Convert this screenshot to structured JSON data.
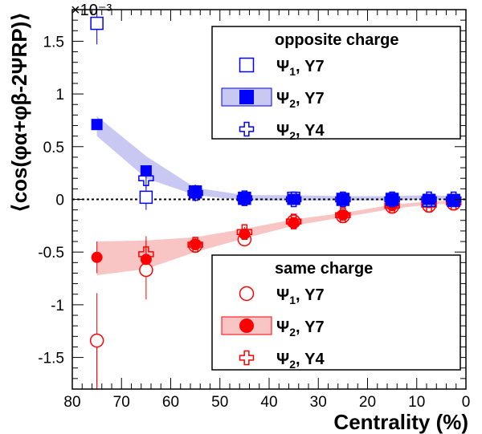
{
  "chart_data": {
    "type": "scatter",
    "title": "",
    "xlabel": "Centrality (%)",
    "ylabel": "⟨cos(φα+φβ-2ΨRP)⟩",
    "y_exponent": "×10⁻³",
    "xlim": [
      80,
      0
    ],
    "ylim": [
      -1.8,
      1.8
    ],
    "x_ticks": [
      80,
      70,
      60,
      50,
      40,
      30,
      20,
      10,
      0
    ],
    "y_ticks": [
      1.5,
      1,
      0.5,
      0,
      -0.5,
      -1,
      -1.5
    ],
    "x_tick_labels": [
      "80",
      "70",
      "60",
      "50",
      "40",
      "30",
      "20",
      "10",
      "0"
    ],
    "y_tick_labels": [
      "1.5",
      "1",
      "0.5",
      "0",
      "-0.5",
      "-1",
      "-1.5"
    ],
    "zero_line": true,
    "series": [
      {
        "name": "Ψ1, Y7",
        "group": "opposite charge",
        "marker": "open-square",
        "color": "#0000ff",
        "x": [
          75,
          65,
          55,
          45,
          35,
          25,
          15,
          7.5,
          2.5
        ],
        "y": [
          1.67,
          0.02,
          0.07,
          0.01,
          0.01,
          0.0,
          0.0,
          -0.01,
          -0.01
        ],
        "err": [
          0.2,
          0.12,
          0.06,
          0.04,
          0.03,
          0.03,
          0.02,
          0.02,
          0.02
        ]
      },
      {
        "name": "Ψ2, Y7",
        "group": "opposite charge",
        "marker": "filled-square",
        "color": "#0000ff",
        "x": [
          75,
          65,
          55,
          45,
          35,
          25,
          15,
          7.5,
          2.5
        ],
        "y": [
          0.71,
          0.27,
          0.07,
          0.01,
          0.0,
          0.0,
          0.0,
          0.0,
          -0.01
        ],
        "band_low": [
          0.6,
          0.2,
          0.04,
          -0.01,
          -0.01,
          -0.01,
          -0.01,
          0.0,
          -0.01
        ],
        "band_high": [
          0.79,
          0.41,
          0.11,
          0.04,
          0.04,
          0.03,
          0.03,
          0.04,
          0.03
        ]
      },
      {
        "name": "Ψ2, Y4",
        "group": "opposite charge",
        "marker": "open-cross",
        "color": "#0000ff",
        "x": [
          65,
          55,
          45,
          35,
          25,
          15,
          7.5,
          2.5
        ],
        "y": [
          0.2,
          0.06,
          0.01,
          0.0,
          0.0,
          0.0,
          0.0,
          0.0
        ],
        "err": [
          0.1,
          0.08,
          0.04,
          0.03,
          0.02,
          0.02,
          0.02,
          0.02
        ]
      },
      {
        "name": "Ψ1, Y7",
        "group": "same charge",
        "marker": "open-circle",
        "color": "#ff0000",
        "x": [
          75,
          65,
          55,
          45,
          35,
          25,
          15,
          7.5,
          2.5
        ],
        "y": [
          -1.34,
          -0.67,
          -0.44,
          -0.38,
          -0.21,
          -0.16,
          -0.07,
          -0.06,
          -0.04
        ],
        "err": [
          0.45,
          0.28,
          0.07,
          0.05,
          0.04,
          0.03,
          0.03,
          0.03,
          0.03
        ]
      },
      {
        "name": "Ψ2, Y7",
        "group": "same charge",
        "marker": "filled-circle",
        "color": "#ff0000",
        "x": [
          75,
          65,
          55,
          45,
          35,
          25,
          15,
          7.5,
          2.5
        ],
        "y": [
          -0.55,
          -0.57,
          -0.43,
          -0.33,
          -0.22,
          -0.15,
          -0.06,
          -0.03,
          -0.02
        ],
        "err": [
          0.15,
          0.1,
          0.05,
          0.04,
          0.03,
          0.02,
          0.02,
          0.02,
          0.02
        ],
        "band_low": [
          -0.72,
          -0.66,
          -0.5,
          -0.37,
          -0.25,
          -0.17,
          -0.09,
          -0.05,
          -0.04
        ],
        "band_high": [
          -0.4,
          -0.39,
          -0.36,
          -0.28,
          -0.19,
          -0.13,
          -0.05,
          -0.02,
          -0.01
        ]
      },
      {
        "name": "Ψ2, Y4",
        "group": "same charge",
        "marker": "open-cross",
        "color": "#ff0000",
        "x": [
          65,
          55,
          45,
          35,
          25,
          15,
          7.5,
          2.5
        ],
        "y": [
          -0.52,
          -0.43,
          -0.31,
          -0.21,
          -0.15,
          -0.06,
          -0.05,
          -0.03
        ],
        "err": [
          0.17,
          0.07,
          0.05,
          0.04,
          0.03,
          0.03,
          0.02,
          0.02
        ]
      }
    ],
    "legends": [
      {
        "title": "opposite charge",
        "placement": "top-right",
        "entries": [
          {
            "symbol": "Ψ",
            "sub": "1",
            "suffix": ", Y7",
            "marker": "open-square",
            "color": "#0000ff",
            "band": false
          },
          {
            "symbol": "Ψ",
            "sub": "2",
            "suffix": ", Y7",
            "marker": "filled-square",
            "color": "#0000ff",
            "band": true
          },
          {
            "symbol": "Ψ",
            "sub": "2",
            "suffix": ", Y4",
            "marker": "open-cross",
            "color": "#0000ff",
            "band": false
          }
        ]
      },
      {
        "title": "same charge",
        "placement": "bottom-right",
        "entries": [
          {
            "symbol": "Ψ",
            "sub": "1",
            "suffix": ", Y7",
            "marker": "open-circle",
            "color": "#ff0000",
            "band": false
          },
          {
            "symbol": "Ψ",
            "sub": "2",
            "suffix": ", Y7",
            "marker": "filled-circle",
            "color": "#ff0000",
            "band": true
          },
          {
            "symbol": "Ψ",
            "sub": "2",
            "suffix": ", Y4",
            "marker": "open-cross",
            "color": "#ff0000",
            "band": false
          }
        ]
      }
    ]
  },
  "colors": {
    "opposite_band": "#c8c8f2",
    "same_band": "#f9c4c4",
    "opposite": "#0000ff",
    "same": "#ff0000"
  }
}
